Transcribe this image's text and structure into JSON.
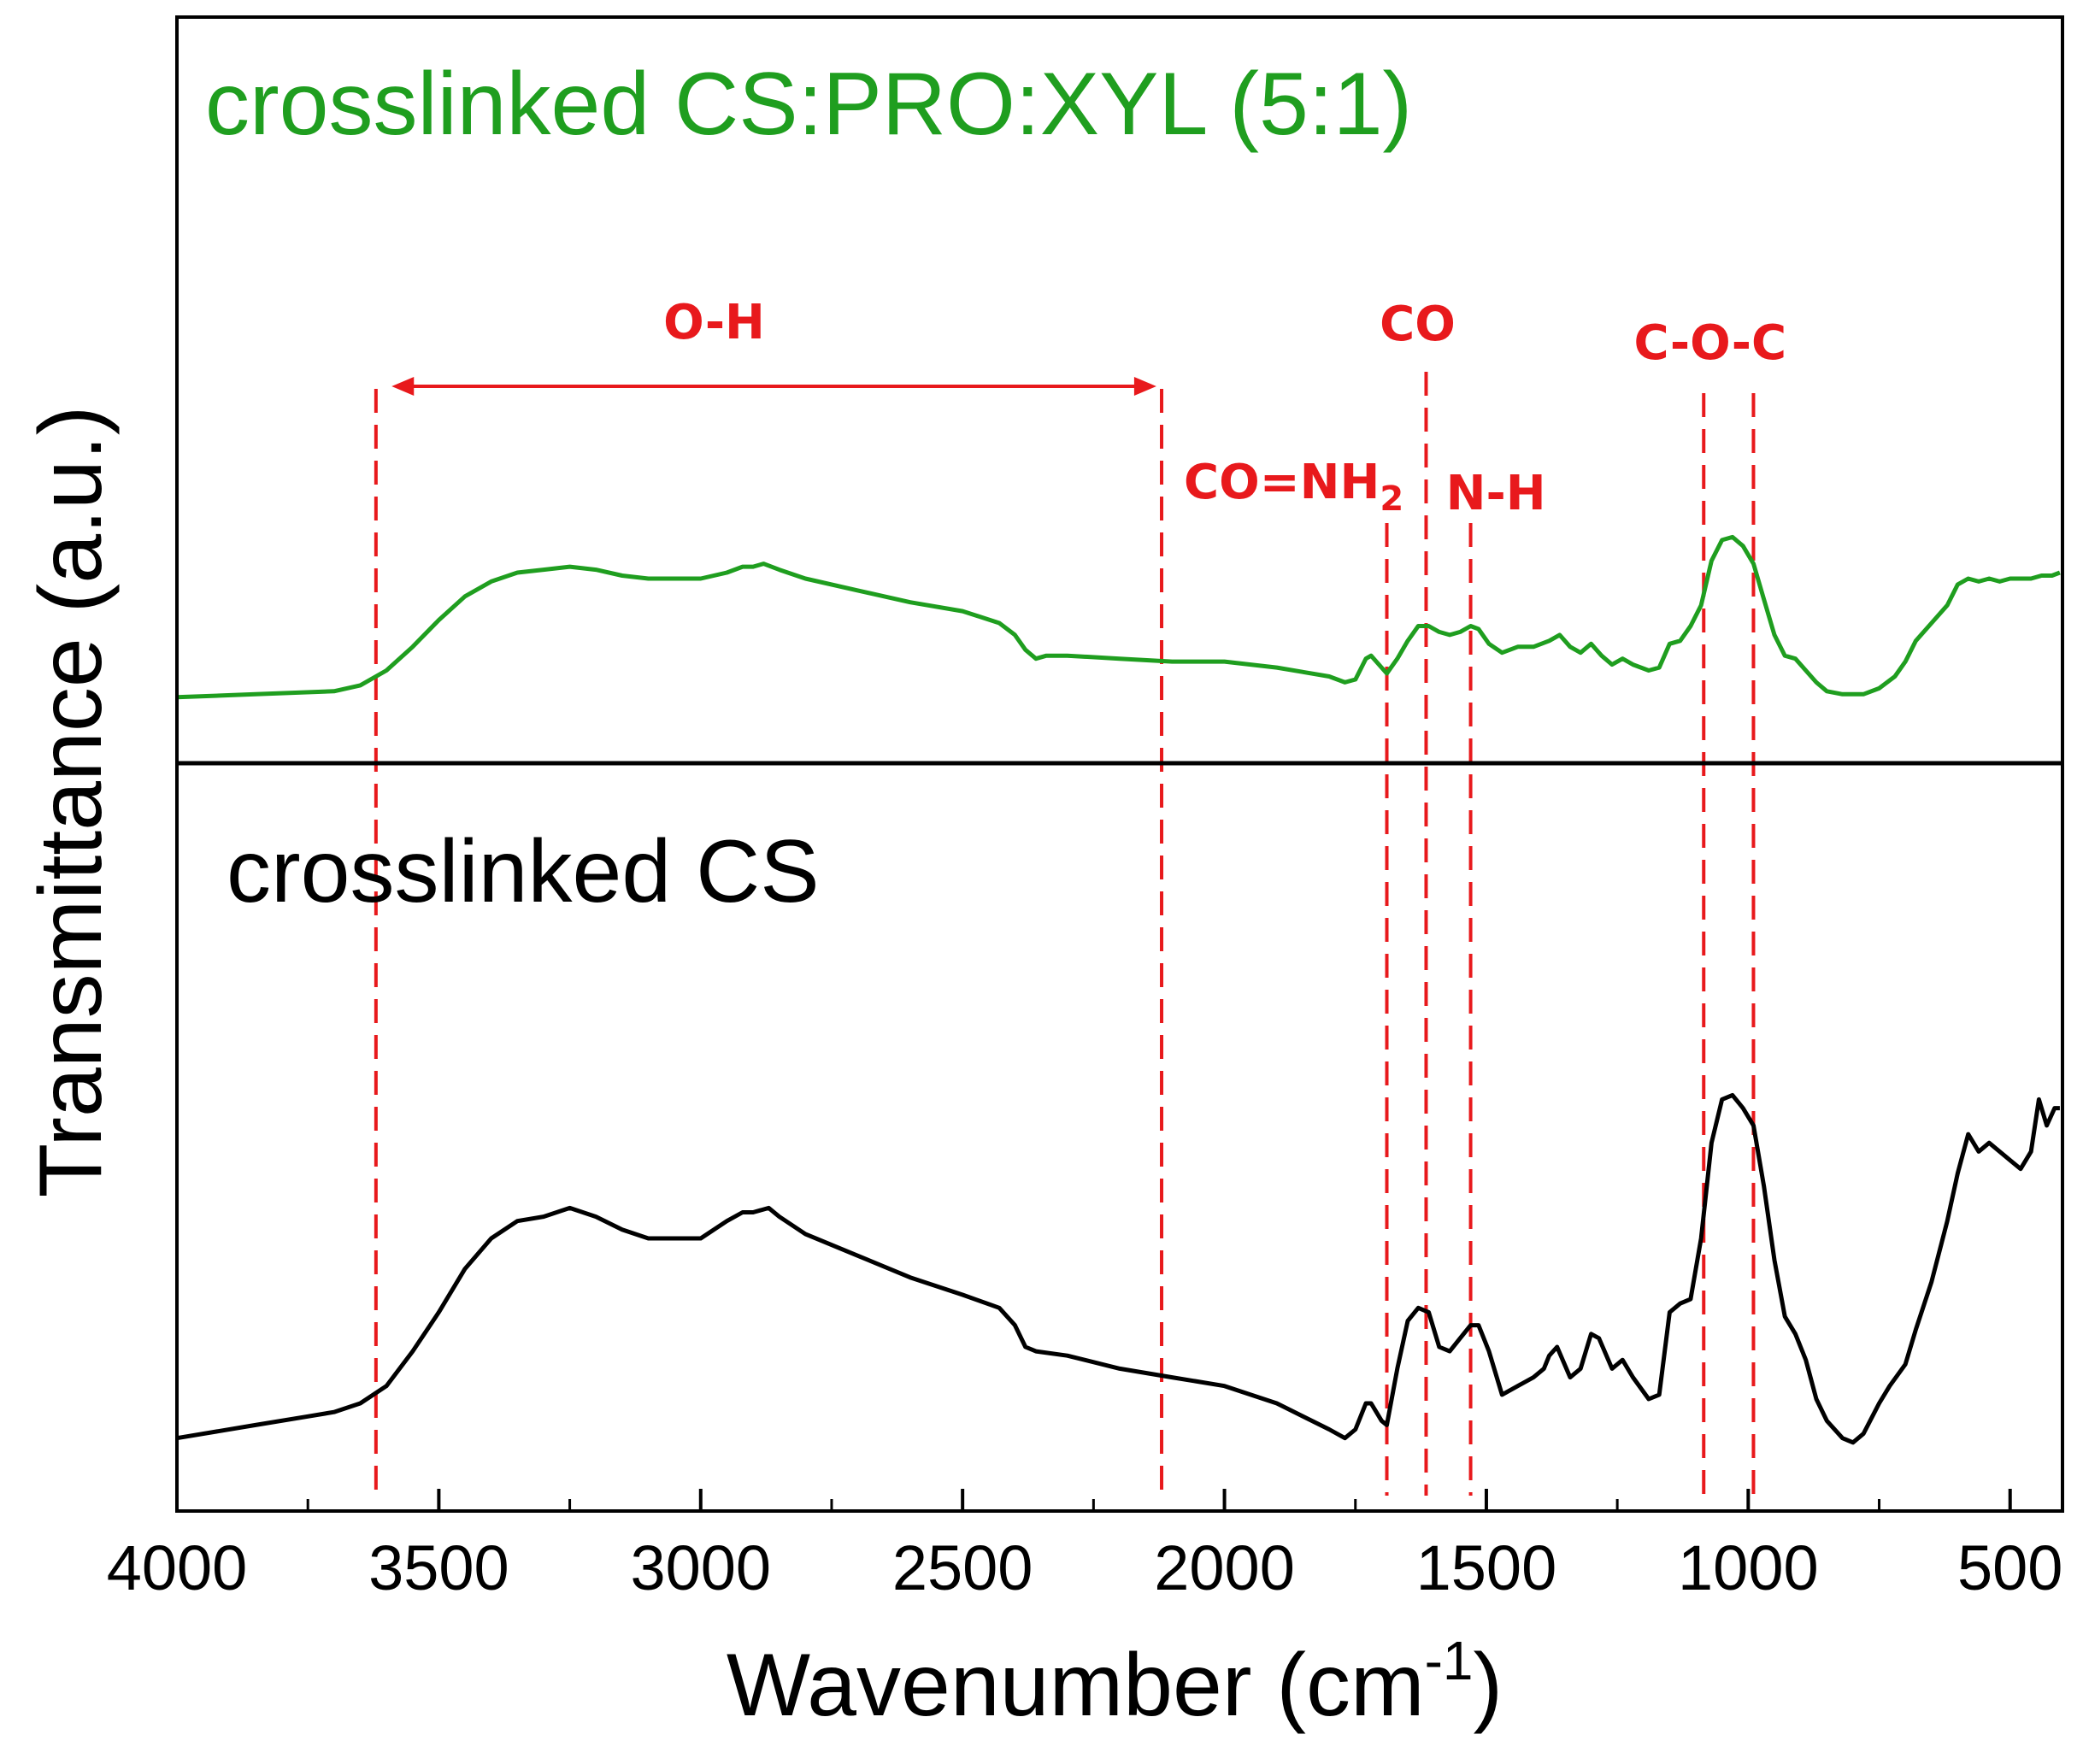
{
  "chart_data": {
    "type": "line",
    "title": "",
    "xlabel": "Wavenumber (cm",
    "xlabel_sup": "-1",
    "xlabel_close": ")",
    "ylabel": "Transmittance (a.u.)",
    "xlim": [
      4000,
      400
    ],
    "x_reversed": true,
    "yticks_shown": false,
    "xticks": [
      {
        "value": 4000,
        "label": "4000"
      },
      {
        "value": 3500,
        "label": "3500"
      },
      {
        "value": 3000,
        "label": "3000"
      },
      {
        "value": 2500,
        "label": "2500"
      },
      {
        "value": 2000,
        "label": "2000"
      },
      {
        "value": 1500,
        "label": "1500"
      },
      {
        "value": 1000,
        "label": "1000"
      },
      {
        "value": 500,
        "label": "500"
      }
    ],
    "panels": [
      {
        "name": "crosslinked CS:PRO:XYL (5:1)",
        "label": "crosslinked CS:PRO:XYL (5:1)",
        "color": "#1f9e1f",
        "ylim": [
          0,
          1
        ],
        "points": [
          [
            4000,
            0.09
          ],
          [
            3850,
            0.1
          ],
          [
            3700,
            0.11
          ],
          [
            3650,
            0.13
          ],
          [
            3600,
            0.18
          ],
          [
            3550,
            0.26
          ],
          [
            3500,
            0.35
          ],
          [
            3450,
            0.43
          ],
          [
            3400,
            0.48
          ],
          [
            3350,
            0.51
          ],
          [
            3300,
            0.52
          ],
          [
            3250,
            0.53
          ],
          [
            3200,
            0.52
          ],
          [
            3150,
            0.5
          ],
          [
            3100,
            0.49
          ],
          [
            3050,
            0.49
          ],
          [
            3000,
            0.49
          ],
          [
            2950,
            0.51
          ],
          [
            2920,
            0.53
          ],
          [
            2900,
            0.53
          ],
          [
            2880,
            0.54
          ],
          [
            2850,
            0.52
          ],
          [
            2800,
            0.49
          ],
          [
            2700,
            0.45
          ],
          [
            2600,
            0.41
          ],
          [
            2500,
            0.38
          ],
          [
            2430,
            0.34
          ],
          [
            2400,
            0.3
          ],
          [
            2380,
            0.25
          ],
          [
            2360,
            0.22
          ],
          [
            2340,
            0.23
          ],
          [
            2300,
            0.23
          ],
          [
            2200,
            0.22
          ],
          [
            2100,
            0.21
          ],
          [
            2000,
            0.21
          ],
          [
            1900,
            0.19
          ],
          [
            1800,
            0.16
          ],
          [
            1770,
            0.14
          ],
          [
            1750,
            0.15
          ],
          [
            1730,
            0.22
          ],
          [
            1720,
            0.23
          ],
          [
            1700,
            0.19
          ],
          [
            1690,
            0.17
          ],
          [
            1670,
            0.22
          ],
          [
            1650,
            0.28
          ],
          [
            1630,
            0.33
          ],
          [
            1610,
            0.33
          ],
          [
            1590,
            0.31
          ],
          [
            1570,
            0.3
          ],
          [
            1550,
            0.31
          ],
          [
            1530,
            0.33
          ],
          [
            1515,
            0.32
          ],
          [
            1495,
            0.27
          ],
          [
            1470,
            0.24
          ],
          [
            1440,
            0.26
          ],
          [
            1410,
            0.26
          ],
          [
            1380,
            0.28
          ],
          [
            1360,
            0.3
          ],
          [
            1340,
            0.26
          ],
          [
            1320,
            0.24
          ],
          [
            1300,
            0.27
          ],
          [
            1280,
            0.23
          ],
          [
            1260,
            0.2
          ],
          [
            1240,
            0.22
          ],
          [
            1220,
            0.2
          ],
          [
            1190,
            0.18
          ],
          [
            1170,
            0.19
          ],
          [
            1150,
            0.27
          ],
          [
            1130,
            0.28
          ],
          [
            1110,
            0.33
          ],
          [
            1090,
            0.4
          ],
          [
            1070,
            0.55
          ],
          [
            1050,
            0.62
          ],
          [
            1030,
            0.63
          ],
          [
            1010,
            0.6
          ],
          [
            990,
            0.54
          ],
          [
            970,
            0.42
          ],
          [
            950,
            0.3
          ],
          [
            930,
            0.23
          ],
          [
            910,
            0.22
          ],
          [
            890,
            0.18
          ],
          [
            870,
            0.14
          ],
          [
            850,
            0.11
          ],
          [
            820,
            0.1
          ],
          [
            800,
            0.1
          ],
          [
            780,
            0.1
          ],
          [
            750,
            0.12
          ],
          [
            720,
            0.16
          ],
          [
            700,
            0.21
          ],
          [
            680,
            0.28
          ],
          [
            650,
            0.34
          ],
          [
            620,
            0.4
          ],
          [
            600,
            0.47
          ],
          [
            580,
            0.49
          ],
          [
            560,
            0.48
          ],
          [
            540,
            0.49
          ],
          [
            520,
            0.48
          ],
          [
            500,
            0.49
          ],
          [
            480,
            0.49
          ],
          [
            460,
            0.49
          ],
          [
            440,
            0.5
          ],
          [
            420,
            0.5
          ],
          [
            405,
            0.51
          ]
        ]
      },
      {
        "name": "crosslinked CS",
        "label": "crosslinked CS",
        "color": "#000000",
        "ylim": [
          0,
          1
        ],
        "points": [
          [
            4000,
            0.04
          ],
          [
            3850,
            0.07
          ],
          [
            3750,
            0.09
          ],
          [
            3700,
            0.1
          ],
          [
            3650,
            0.12
          ],
          [
            3600,
            0.16
          ],
          [
            3550,
            0.24
          ],
          [
            3500,
            0.33
          ],
          [
            3450,
            0.43
          ],
          [
            3400,
            0.5
          ],
          [
            3350,
            0.54
          ],
          [
            3300,
            0.55
          ],
          [
            3250,
            0.57
          ],
          [
            3200,
            0.55
          ],
          [
            3150,
            0.52
          ],
          [
            3100,
            0.5
          ],
          [
            3050,
            0.5
          ],
          [
            3000,
            0.5
          ],
          [
            2950,
            0.54
          ],
          [
            2920,
            0.56
          ],
          [
            2900,
            0.56
          ],
          [
            2870,
            0.57
          ],
          [
            2850,
            0.55
          ],
          [
            2800,
            0.51
          ],
          [
            2700,
            0.46
          ],
          [
            2600,
            0.41
          ],
          [
            2500,
            0.37
          ],
          [
            2430,
            0.34
          ],
          [
            2400,
            0.3
          ],
          [
            2380,
            0.25
          ],
          [
            2360,
            0.24
          ],
          [
            2300,
            0.23
          ],
          [
            2200,
            0.2
          ],
          [
            2100,
            0.18
          ],
          [
            2000,
            0.16
          ],
          [
            1900,
            0.12
          ],
          [
            1800,
            0.06
          ],
          [
            1770,
            0.04
          ],
          [
            1750,
            0.06
          ],
          [
            1730,
            0.12
          ],
          [
            1720,
            0.12
          ],
          [
            1700,
            0.08
          ],
          [
            1690,
            0.07
          ],
          [
            1670,
            0.2
          ],
          [
            1650,
            0.31
          ],
          [
            1630,
            0.34
          ],
          [
            1610,
            0.33
          ],
          [
            1590,
            0.25
          ],
          [
            1570,
            0.24
          ],
          [
            1550,
            0.27
          ],
          [
            1530,
            0.3
          ],
          [
            1515,
            0.3
          ],
          [
            1495,
            0.24
          ],
          [
            1470,
            0.14
          ],
          [
            1440,
            0.16
          ],
          [
            1410,
            0.18
          ],
          [
            1390,
            0.2
          ],
          [
            1380,
            0.23
          ],
          [
            1365,
            0.25
          ],
          [
            1340,
            0.18
          ],
          [
            1320,
            0.2
          ],
          [
            1300,
            0.28
          ],
          [
            1285,
            0.27
          ],
          [
            1260,
            0.2
          ],
          [
            1240,
            0.22
          ],
          [
            1220,
            0.18
          ],
          [
            1190,
            0.13
          ],
          [
            1170,
            0.14
          ],
          [
            1150,
            0.33
          ],
          [
            1130,
            0.35
          ],
          [
            1110,
            0.36
          ],
          [
            1090,
            0.5
          ],
          [
            1070,
            0.72
          ],
          [
            1050,
            0.82
          ],
          [
            1030,
            0.83
          ],
          [
            1010,
            0.8
          ],
          [
            990,
            0.76
          ],
          [
            970,
            0.62
          ],
          [
            950,
            0.45
          ],
          [
            930,
            0.32
          ],
          [
            910,
            0.28
          ],
          [
            890,
            0.22
          ],
          [
            870,
            0.13
          ],
          [
            850,
            0.08
          ],
          [
            820,
            0.04
          ],
          [
            800,
            0.03
          ],
          [
            780,
            0.05
          ],
          [
            750,
            0.12
          ],
          [
            730,
            0.16
          ],
          [
            700,
            0.21
          ],
          [
            680,
            0.29
          ],
          [
            650,
            0.4
          ],
          [
            620,
            0.54
          ],
          [
            600,
            0.65
          ],
          [
            580,
            0.74
          ],
          [
            560,
            0.7
          ],
          [
            540,
            0.72
          ],
          [
            520,
            0.7
          ],
          [
            500,
            0.68
          ],
          [
            480,
            0.66
          ],
          [
            460,
            0.7
          ],
          [
            445,
            0.82
          ],
          [
            430,
            0.76
          ],
          [
            415,
            0.8
          ],
          [
            405,
            0.8
          ]
        ]
      }
    ],
    "annotations": {
      "color": "#e8191c",
      "lines": [
        3620,
        2120,
        1690,
        1615,
        1530,
        1085,
        990
      ],
      "oh_arrow": {
        "from": 3590,
        "to": 2130,
        "label": "O-H"
      },
      "labels": [
        {
          "text": "CO",
          "x": 1615,
          "y": 0.91
        },
        {
          "text": "C-O-C",
          "x": 1040,
          "y": 0.88
        },
        {
          "text": "N-H",
          "x": 1490,
          "y": 0.63
        }
      ],
      "co_nh2": {
        "main": "CO=NH",
        "sub": "2",
        "x": 1790,
        "y": 0.66
      }
    }
  }
}
